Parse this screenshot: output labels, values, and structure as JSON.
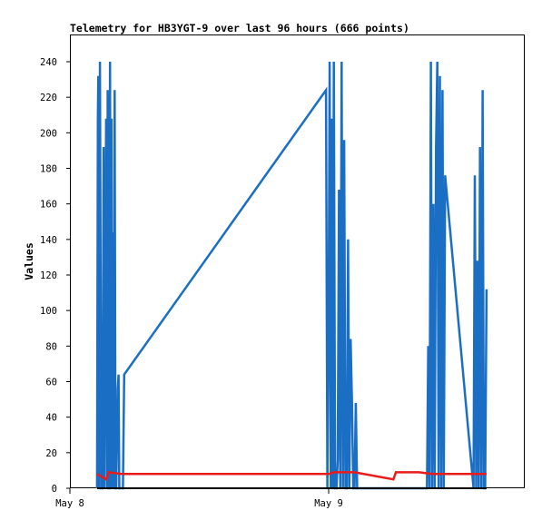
{
  "chart_data": {
    "type": "line",
    "title": "Telemetry for HB3YGT-9 over last 96 hours (666 points)",
    "xlabel": "",
    "ylabel": "Values",
    "x_ticks": [
      "May 8",
      "May 9"
    ],
    "y_ticks": [
      "0",
      "20",
      "40",
      "60",
      "80",
      "100",
      "120",
      "140",
      "160",
      "180",
      "200",
      "220",
      "240"
    ],
    "xlim": [
      0,
      1.75
    ],
    "ylim": [
      0,
      255
    ],
    "grid": false,
    "colors": {
      "blue": "#1a6fc4",
      "red": "#e81c1c",
      "black": "#000000"
    },
    "series": [
      {
        "color": "blue",
        "x": [
          0.105,
          0.108,
          0.11,
          0.112,
          0.116,
          0.121,
          0.126,
          0.13,
          0.133,
          0.136,
          0.14,
          0.143,
          0.146,
          0.149,
          0.152,
          0.155,
          0.158,
          0.161,
          0.164,
          0.167,
          0.17,
          0.173,
          0.176,
          0.179,
          0.185,
          0.188,
          0.191,
          0.194,
          0.197,
          0.2,
          0.205,
          0.21,
          0.99,
          0.995,
          1.0,
          1.004,
          1.008,
          1.012,
          1.016,
          1.02,
          1.025,
          1.03,
          1.035,
          1.04,
          1.045,
          1.05,
          1.055,
          1.06,
          1.065,
          1.07,
          1.075,
          1.08,
          1.085,
          1.09,
          1.095,
          1.1,
          1.105,
          1.11,
          1.38,
          1.385,
          1.39,
          1.395,
          1.4,
          1.405,
          1.41,
          1.415,
          1.42,
          1.425,
          1.43,
          1.435,
          1.44,
          1.445,
          1.45,
          1.56,
          1.565,
          1.57,
          1.575,
          1.58,
          1.585,
          1.59,
          1.595,
          1.6,
          1.605,
          1.61
        ],
        "y": [
          0,
          208,
          232,
          0,
          240,
          0,
          0,
          192,
          0,
          104,
          208,
          0,
          224,
          0,
          0,
          240,
          0,
          208,
          0,
          144,
          0,
          224,
          0,
          0,
          56,
          64,
          0,
          0,
          0,
          0,
          0,
          64,
          224,
          0,
          96,
          240,
          0,
          208,
          0,
          240,
          0,
          0,
          16,
          168,
          0,
          240,
          0,
          196,
          0,
          0,
          140,
          0,
          84,
          48,
          0,
          0,
          48,
          0,
          0,
          80,
          0,
          240,
          0,
          160,
          0,
          192,
          240,
          0,
          232,
          0,
          224,
          0,
          176,
          0,
          176,
          0,
          128,
          0,
          192,
          0,
          224,
          0,
          0,
          112
        ]
      },
      {
        "color": "red",
        "x": [
          0.105,
          0.14,
          0.15,
          0.2,
          0.3,
          0.4,
          0.5,
          0.6,
          0.7,
          0.8,
          0.9,
          1.0,
          1.02,
          1.06,
          1.08,
          1.1,
          1.25,
          1.26,
          1.29,
          1.35,
          1.4,
          1.45,
          1.5,
          1.55,
          1.61
        ],
        "y": [
          8,
          5,
          9,
          8,
          8,
          8,
          8,
          8,
          8,
          8,
          8,
          8,
          9,
          9,
          9,
          9,
          5,
          9,
          9,
          9,
          8,
          8,
          8,
          8,
          8
        ]
      },
      {
        "color": "black",
        "x": [
          0.105,
          1.61
        ],
        "y": [
          0,
          0
        ]
      }
    ]
  }
}
